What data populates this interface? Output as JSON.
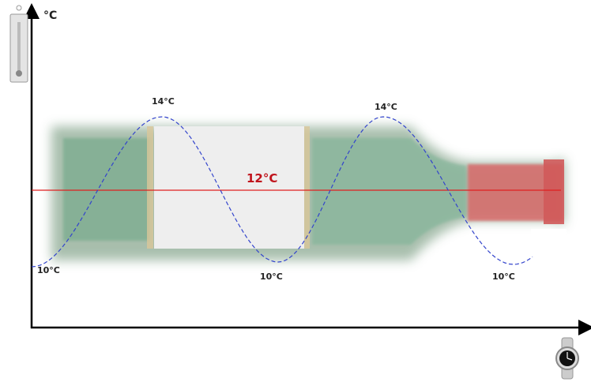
{
  "axis_label": "°C",
  "mean_label": "12°C",
  "peak_labels": [
    "14°C",
    "14°C"
  ],
  "trough_labels": [
    "10°C",
    "10°C",
    "10°C"
  ]
}
